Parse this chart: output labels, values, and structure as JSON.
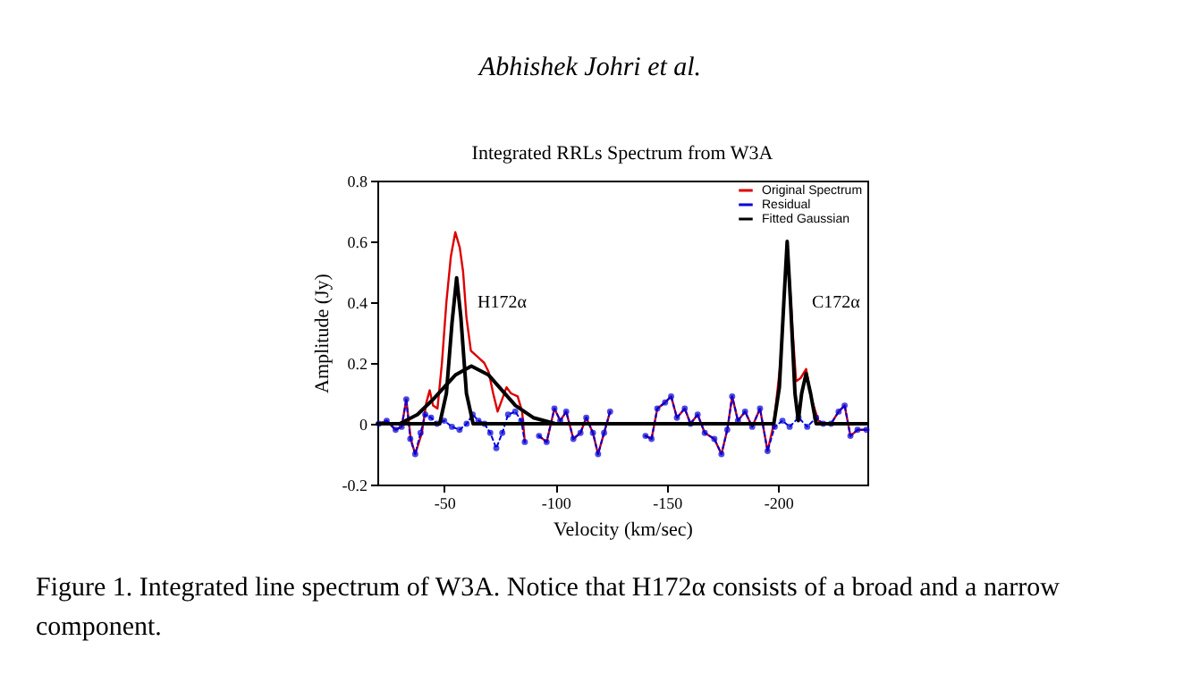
{
  "chart_data": {
    "type": "line",
    "title": "Integrated RRLs Spectrum from W3A",
    "xlabel": "Velocity (km/sec)",
    "ylabel": "Amplitude (Jy)",
    "xlim": [
      -20,
      -240
    ],
    "xticks": [
      -50,
      -100,
      -150,
      -200
    ],
    "ylim": [
      -0.2,
      0.8
    ],
    "yticks": [
      -0.2,
      0,
      0.2,
      0.4,
      0.6,
      0.8
    ],
    "grid": false,
    "legend": "top right",
    "series": [
      {
        "name": "Original Spectrum",
        "color": "#dd0000",
        "line_style": "solid",
        "marker": "none",
        "x": [
          -20.7,
          -24.2,
          -28.2,
          -30.9,
          -33,
          -35,
          -37,
          -40,
          -42,
          -43.5,
          -45,
          -47,
          -49,
          -51,
          -53,
          -55,
          -57,
          -58.5,
          -60,
          -62,
          -65,
          -68,
          -70,
          -72,
          -74,
          -76,
          -78,
          -80,
          -83,
          -85,
          -86.2,
          -89,
          -92.6,
          -96,
          -99.5,
          -102.1,
          -104.8,
          -108,
          -111.2,
          -113.8,
          -116.8,
          -119.1,
          -121.8,
          -124.5,
          -132,
          -140.4,
          -143.1,
          -145.7,
          -149.2,
          -151.9,
          -154.5,
          -158,
          -160.6,
          -163.8,
          -167,
          -171.3,
          -174.5,
          -177.1,
          -179.3,
          -181.9,
          -185.1,
          -188.3,
          -191.8,
          -195.2,
          -198,
          -201,
          -204,
          -206.5,
          -208,
          -210,
          -212.5,
          -215,
          -218,
          -220.2,
          -223.7,
          -227.1,
          -229.8,
          -232.4,
          -235.6,
          -239.6
        ],
        "values": [
          0,
          0.01,
          -0.02,
          -0.01,
          0.08,
          -0.05,
          -0.1,
          -0.03,
          0.07,
          0.11,
          0.06,
          0.05,
          0.2,
          0.4,
          0.55,
          0.63,
          0.58,
          0.5,
          0.35,
          0.24,
          0.22,
          0.2,
          0.17,
          0.1,
          0.04,
          0.08,
          0.12,
          0.1,
          0.09,
          0.04,
          -0.06,
          null,
          -0.04,
          -0.06,
          0.05,
          0.01,
          0.04,
          -0.05,
          -0.03,
          0.02,
          -0.03,
          -0.1,
          -0.03,
          0.04,
          null,
          -0.04,
          -0.05,
          0.05,
          0.07,
          0.09,
          0.02,
          0.05,
          0,
          0.03,
          -0.03,
          -0.05,
          -0.1,
          -0.02,
          0.09,
          0.01,
          0.04,
          -0.01,
          0.05,
          -0.09,
          0,
          0.2,
          0.6,
          0.3,
          0.14,
          0.15,
          0.18,
          0.08,
          0.01,
          0,
          0,
          0.04,
          0.06,
          -0.04,
          -0.02,
          -0.02
        ]
      },
      {
        "name": "Residual",
        "color": "#0000dd",
        "line_style": "dotted",
        "marker": "circle",
        "x": [
          -20.7,
          -24.2,
          -28.2,
          -30.9,
          -33,
          -34.8,
          -37,
          -39.4,
          -41.5,
          -44.1,
          -46.8,
          -50,
          -53.5,
          -56.9,
          -60.1,
          -62.8,
          -65.4,
          -68.1,
          -70.7,
          -73.4,
          -76.1,
          -78.7,
          -81.9,
          -84.6,
          -86.2,
          -89,
          -92.6,
          -96,
          -99.5,
          -102.1,
          -104.8,
          -108,
          -111.2,
          -113.8,
          -116.8,
          -119.1,
          -121.8,
          -124.5,
          -132,
          -140.4,
          -143.1,
          -145.7,
          -149.2,
          -151.9,
          -154.5,
          -158,
          -160.6,
          -163.8,
          -167,
          -171.3,
          -174.5,
          -177.1,
          -179.3,
          -181.9,
          -185.1,
          -188.3,
          -191.8,
          -195.2,
          -198.4,
          -201.9,
          -205.1,
          -209.1,
          -213,
          -217,
          -220.2,
          -223.7,
          -227.1,
          -229.8,
          -232.4,
          -235.6,
          -239.6
        ],
        "values": [
          0,
          0.01,
          -0.02,
          -0.01,
          0.08,
          -0.05,
          -0.1,
          -0.03,
          0.03,
          0.02,
          0,
          0.01,
          -0.01,
          -0.02,
          0,
          0.03,
          0.01,
          0,
          -0.03,
          -0.08,
          -0.03,
          0.03,
          0.04,
          0.01,
          -0.06,
          null,
          -0.04,
          -0.06,
          0.05,
          0.01,
          0.04,
          -0.05,
          -0.03,
          0.02,
          -0.03,
          -0.1,
          -0.03,
          0.04,
          null,
          -0.04,
          -0.05,
          0.05,
          0.07,
          0.09,
          0.02,
          0.05,
          0,
          0.03,
          -0.03,
          -0.05,
          -0.1,
          -0.02,
          0.09,
          0.01,
          0.04,
          -0.01,
          0.05,
          -0.09,
          -0.01,
          0.01,
          -0.01,
          0.02,
          -0.01,
          0.02,
          0,
          0,
          0.04,
          0.06,
          -0.04,
          -0.02,
          -0.02
        ]
      },
      {
        "name": "Fitted Gaussian",
        "color": "#000000",
        "line_style": "solid",
        "marker": "none",
        "x": [
          -20,
          -48,
          -51,
          -53.5,
          -55.6,
          -57.5,
          -60,
          -63,
          -198,
          -200.5,
          -202.5,
          -204,
          -205.5,
          -207.5,
          -209,
          -210.5,
          -212.5,
          -214.5,
          -217,
          -240
        ],
        "values": [
          0,
          0,
          0.1,
          0.33,
          0.48,
          0.35,
          0.1,
          0,
          0,
          0.12,
          0.4,
          0.6,
          0.4,
          0.1,
          0.01,
          0.1,
          0.165,
          0.1,
          0,
          0
        ]
      },
      {
        "color": "#000000",
        "line_style": "solid",
        "marker": "none",
        "x": [
          -30,
          -38,
          -45,
          -50,
          -55,
          -62.2,
          -70,
          -76,
          -82,
          -90,
          -100
        ],
        "values": [
          0,
          0.03,
          0.08,
          0.12,
          0.16,
          0.19,
          0.16,
          0.11,
          0.06,
          0.02,
          0
        ]
      }
    ],
    "annotations": [
      "H172α",
      "C172α",
      "Abhishek Johri et al.",
      "Figure 1. Integrated line spectrum of W3A. Notice that H172α consists of a broad and a narrow component."
    ]
  }
}
